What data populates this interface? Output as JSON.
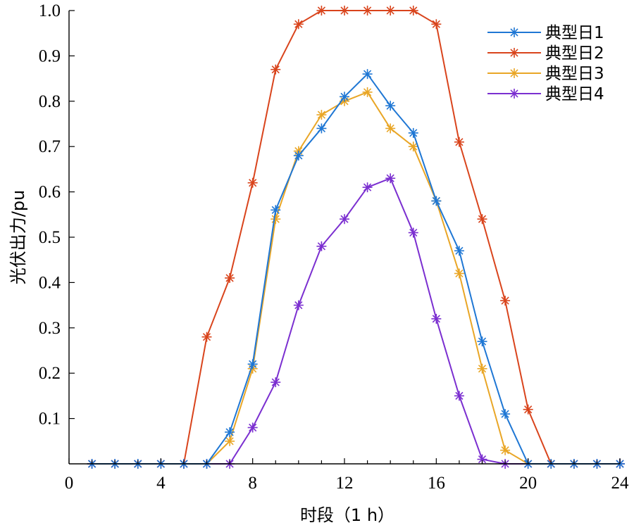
{
  "chart_data": {
    "type": "line",
    "xlabel": "时段（1 h）",
    "ylabel": "光伏出力/pu",
    "xlim": [
      0,
      24
    ],
    "ylim": [
      0,
      1.0
    ],
    "xticks": [
      0,
      4,
      8,
      12,
      16,
      20,
      24
    ],
    "xtick_labels": [
      "0",
      "4",
      "8",
      "12",
      "16",
      "20",
      "24"
    ],
    "yticks": [
      0.1,
      0.2,
      0.3,
      0.4,
      0.5,
      0.6,
      0.7,
      0.8,
      0.9,
      1.0
    ],
    "ytick_labels": [
      "0.1",
      "0.2",
      "0.3",
      "0.4",
      "0.5",
      "0.6",
      "0.7",
      "0.8",
      "0.9",
      "1.0"
    ],
    "grid": false,
    "legend_position": "top-right",
    "marker": "asterisk",
    "x": [
      1,
      2,
      3,
      4,
      5,
      6,
      7,
      8,
      9,
      10,
      11,
      12,
      13,
      14,
      15,
      16,
      17,
      18,
      19,
      20,
      21,
      22,
      23,
      24
    ],
    "series": [
      {
        "name": "典型日1",
        "color": "#1f77d4",
        "values": [
          0,
          0,
          0,
          0,
          0,
          0,
          0.07,
          0.22,
          0.56,
          0.68,
          0.74,
          0.81,
          0.86,
          0.79,
          0.73,
          0.58,
          0.47,
          0.27,
          0.11,
          0,
          0,
          0,
          0,
          0
        ]
      },
      {
        "name": "典型日2",
        "color": "#d9441c",
        "values": [
          0,
          0,
          0,
          0,
          0,
          0.28,
          0.41,
          0.62,
          0.87,
          0.97,
          1.0,
          1.0,
          1.0,
          1.0,
          1.0,
          0.97,
          0.71,
          0.54,
          0.36,
          0.12,
          0,
          0,
          0,
          0
        ]
      },
      {
        "name": "典型日3",
        "color": "#e9a626",
        "values": [
          0,
          0,
          0,
          0,
          0,
          0,
          0.05,
          0.21,
          0.54,
          0.69,
          0.77,
          0.8,
          0.82,
          0.74,
          0.7,
          0.58,
          0.42,
          0.21,
          0.03,
          0,
          0,
          0,
          0,
          0
        ]
      },
      {
        "name": "典型日4",
        "color": "#7b2fd0",
        "values": [
          0,
          0,
          0,
          0,
          0,
          0,
          0,
          0.08,
          0.18,
          0.35,
          0.48,
          0.54,
          0.61,
          0.63,
          0.51,
          0.32,
          0.15,
          0.01,
          0,
          0,
          0,
          0,
          0,
          0
        ]
      }
    ]
  }
}
